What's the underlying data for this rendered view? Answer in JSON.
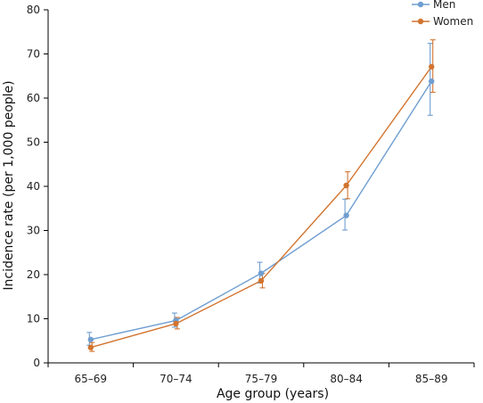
{
  "chart_data": {
    "type": "line",
    "categories": [
      "65–69",
      "70–74",
      "75–79",
      "80–84",
      "85–89"
    ],
    "xlabel": "Age group (years)",
    "ylabel": "Incidence rate (per 1,000 people)",
    "ylim": [
      0,
      80
    ],
    "yticks": [
      0,
      10,
      20,
      30,
      40,
      50,
      60,
      70,
      80
    ],
    "grid": false,
    "legend_position": "top-right",
    "series": [
      {
        "name": "Men",
        "color": "#6f9ed1",
        "values": [
          5.3,
          9.6,
          20.3,
          33.4,
          63.8
        ],
        "error_low": [
          4.0,
          8.1,
          18.1,
          30.1,
          56.1
        ],
        "error_high": [
          6.9,
          11.3,
          22.8,
          37.1,
          72.4
        ]
      },
      {
        "name": "Women",
        "color": "#d2742f",
        "values": [
          3.5,
          8.9,
          18.6,
          40.2,
          67.1
        ],
        "error_low": [
          2.6,
          7.7,
          17.0,
          37.2,
          61.3
        ],
        "error_high": [
          4.6,
          10.3,
          20.3,
          43.3,
          73.2
        ]
      }
    ]
  }
}
